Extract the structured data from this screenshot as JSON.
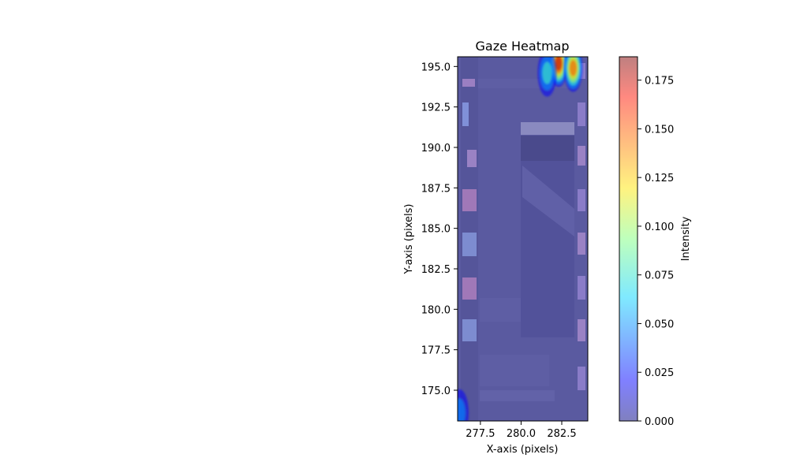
{
  "chart_data": {
    "type": "heatmap",
    "title": "Gaze Heatmap",
    "xlabel": "X-axis (pixels)",
    "ylabel": "Y-axis (pixels)",
    "xlim": [
      276.1,
      284.1
    ],
    "ylim": [
      173.1,
      195.6
    ],
    "x_ticks": [
      277.5,
      280.0,
      282.5
    ],
    "x_tick_labels": [
      "277.5",
      "280.0",
      "282.5"
    ],
    "y_ticks": [
      175.0,
      177.5,
      180.0,
      182.5,
      185.0,
      187.5,
      190.0,
      192.5,
      195.0
    ],
    "y_tick_labels": [
      "175.0",
      "177.5",
      "180.0",
      "182.5",
      "185.0",
      "187.5",
      "190.0",
      "192.5",
      "195.0"
    ],
    "colorbar": {
      "label": "Intensity",
      "colormap": "jet",
      "alpha": 0.5,
      "range": [
        0.0,
        0.187
      ],
      "ticks": [
        0.0,
        0.025,
        0.05,
        0.075,
        0.1,
        0.125,
        0.15,
        0.175
      ],
      "tick_labels": [
        "0.000",
        "0.025",
        "0.050",
        "0.075",
        "0.100",
        "0.125",
        "0.150",
        "0.175"
      ]
    },
    "hotspots": [
      {
        "x": 282.3,
        "y": 195.2,
        "intensity": 0.187
      },
      {
        "x": 283.2,
        "y": 194.9,
        "intensity": 0.15
      },
      {
        "x": 281.6,
        "y": 194.6,
        "intensity": 0.09
      },
      {
        "x": 276.2,
        "y": 173.6,
        "intensity": 0.06
      }
    ],
    "grid": false
  }
}
